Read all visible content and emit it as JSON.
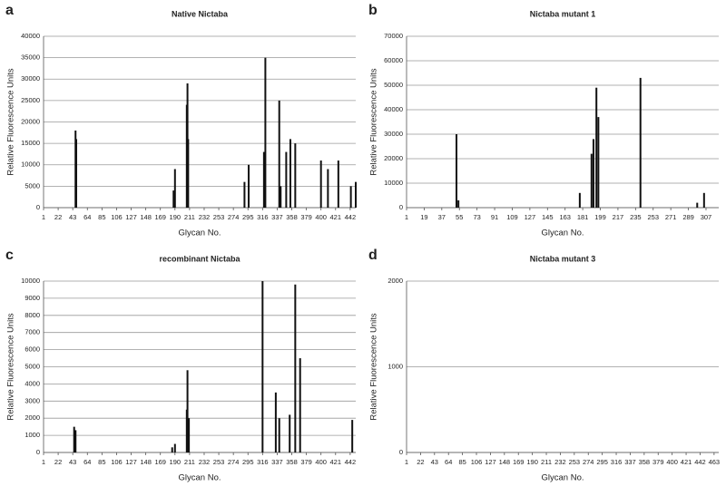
{
  "chart_data": [
    {
      "type": "bar",
      "panel": "a",
      "title": "Native Nictaba",
      "xlabel": "Glycan No.",
      "ylabel": "Relative Fluorescence Units",
      "color": "#111111",
      "grid": true,
      "xlim": [
        1,
        450
      ],
      "ylim": [
        0,
        40000
      ],
      "xticks": [
        1,
        22,
        43,
        64,
        85,
        106,
        127,
        148,
        169,
        190,
        211,
        232,
        253,
        274,
        295,
        316,
        337,
        358,
        379,
        400,
        421,
        442
      ],
      "yticks": [
        0,
        5000,
        10000,
        15000,
        20000,
        25000,
        30000,
        35000,
        40000
      ],
      "x": [
        47,
        48,
        188,
        190,
        207,
        208,
        209,
        290,
        296,
        318,
        320,
        340,
        342,
        350,
        356,
        363,
        400,
        410,
        425,
        443,
        450
      ],
      "values": [
        18000,
        16000,
        4000,
        9000,
        24000,
        29000,
        16000,
        6000,
        10000,
        13000,
        35000,
        25000,
        5000,
        13000,
        16000,
        15000,
        11000,
        9000,
        11000,
        5000,
        6000
      ]
    },
    {
      "type": "bar",
      "panel": "b",
      "title": "Nictaba mutant 1",
      "xlabel": "Glycan No.",
      "ylabel": "Relative Fluorescence Units",
      "color": "#111111",
      "grid": true,
      "xlim": [
        1,
        320
      ],
      "ylim": [
        0,
        70000
      ],
      "xticks": [
        1,
        19,
        37,
        55,
        73,
        91,
        109,
        127,
        145,
        163,
        181,
        199,
        217,
        235,
        253,
        271,
        289,
        307
      ],
      "yticks": [
        0,
        10000,
        20000,
        30000,
        40000,
        50000,
        60000,
        70000
      ],
      "x": [
        52,
        54,
        178,
        190,
        192,
        195,
        197,
        240,
        298,
        305
      ],
      "values": [
        30000,
        3000,
        6000,
        22000,
        28000,
        49000,
        37000,
        53000,
        2000,
        6000
      ]
    },
    {
      "type": "bar",
      "panel": "c",
      "title": "recombinant Nictaba",
      "xlabel": "Glycan No.",
      "ylabel": "Relative Fluorescence Units",
      "color": "#111111",
      "grid": true,
      "xlim": [
        1,
        450
      ],
      "ylim": [
        0,
        10000
      ],
      "xticks": [
        1,
        22,
        43,
        64,
        85,
        106,
        127,
        148,
        169,
        190,
        211,
        232,
        253,
        274,
        295,
        316,
        337,
        358,
        379,
        400,
        421,
        442
      ],
      "yticks": [
        0,
        1000,
        2000,
        3000,
        4000,
        5000,
        6000,
        7000,
        8000,
        9000,
        10000
      ],
      "x": [
        45,
        47,
        186,
        190,
        207,
        208,
        210,
        316,
        335,
        340,
        355,
        363,
        370,
        445
      ],
      "values": [
        1500,
        1300,
        300,
        500,
        2500,
        4800,
        2000,
        10000,
        3500,
        2000,
        2200,
        9800,
        5500,
        1900
      ]
    },
    {
      "type": "bar",
      "panel": "d",
      "title": "Nictaba mutant 3",
      "xlabel": "Glycan No.",
      "ylabel": "Relative Fluorescence Units",
      "color": "#111111",
      "grid": true,
      "xlim": [
        1,
        470
      ],
      "ylim": [
        0,
        2000
      ],
      "xticks": [
        1,
        22,
        43,
        64,
        85,
        106,
        127,
        148,
        169,
        190,
        211,
        232,
        253,
        274,
        295,
        316,
        337,
        358,
        379,
        400,
        421,
        442,
        463
      ],
      "yticks": [
        0,
        1000,
        2000
      ],
      "x": [],
      "values": []
    }
  ]
}
